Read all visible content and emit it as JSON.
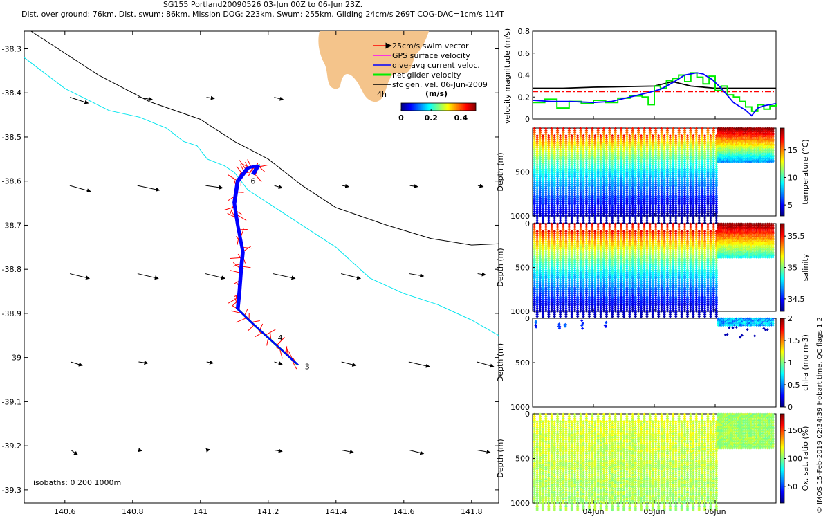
{
  "header": {
    "line1": "SG155 Portland20090526 03-Jun 00Z to 06-Jun 23Z.",
    "line2": "Dist. over ground: 76km. Dist. swum: 86km. Mission DOG: 223km. Swum: 255km. Gliding 24cm/s 269T COG-DAC=1cm/s 114T"
  },
  "footer": {
    "credit": "© IMOS 15-Feb-2019 02:34:39 Hobart time. QC flags 1  2"
  },
  "colors": {
    "coast": "#000000",
    "isobath": "#00e5ee",
    "land": "#f4c48b",
    "swim": "#ff0000",
    "gps": "#ff00ff",
    "dac": "#0000ff",
    "net": "#00ee00",
    "sfc": "#000000"
  },
  "chart_data": [
    {
      "id": "map",
      "type": "scatter",
      "title": "",
      "xlabel": "",
      "ylabel": "",
      "xlim": [
        140.48,
        141.88
      ],
      "ylim": [
        -39.33,
        -38.26
      ],
      "xticks": [
        "140.6",
        "140.8",
        "141",
        "141.2",
        "141.4",
        "141.6",
        "141.8"
      ],
      "xtick_values": [
        140.6,
        140.8,
        141.0,
        141.2,
        141.4,
        141.6,
        141.8
      ],
      "yticks": [
        "-38.3",
        "-38.4",
        "-38.5",
        "-38.6",
        "-38.7",
        "-38.8",
        "-38.9",
        "-39",
        "-39.1",
        "-39.2",
        "-39.3"
      ],
      "ytick_values": [
        -38.3,
        -38.4,
        -38.5,
        -38.6,
        -38.7,
        -38.8,
        -38.9,
        -39.0,
        -39.1,
        -39.2,
        -39.3
      ],
      "legend": [
        {
          "label": "25cm/s swim vector",
          "color": "#ff0000"
        },
        {
          "label": "GPS surface velocity",
          "color": "#ff00ff"
        },
        {
          "label": "dive-avg current veloc.",
          "color": "#0000ff"
        },
        {
          "label": "net glider velocity",
          "color": "#00ee00"
        },
        {
          "label": "sfc gen. vel. 06-Jun-2009",
          "color": "#000000"
        }
      ],
      "colorbar": {
        "label": "(m/s)",
        "ticks": [
          "0",
          "0.2",
          "0.4"
        ],
        "tick_values": [
          0,
          0.2,
          0.4
        ],
        "range": [
          0,
          0.5
        ]
      },
      "inset_label": "4h",
      "isobath_note": "isobaths: 0   200   1000m",
      "coast_line": [
        [
          140.5,
          -38.26
        ],
        [
          140.7,
          -38.36
        ],
        [
          140.85,
          -38.42
        ],
        [
          141.0,
          -38.46
        ],
        [
          141.1,
          -38.51
        ],
        [
          141.2,
          -38.55
        ],
        [
          141.3,
          -38.61
        ],
        [
          141.4,
          -38.66
        ],
        [
          141.55,
          -38.7
        ],
        [
          141.68,
          -38.73
        ],
        [
          141.8,
          -38.745
        ],
        [
          141.88,
          -38.742
        ]
      ],
      "isobath_line": [
        [
          140.48,
          -38.32
        ],
        [
          140.6,
          -38.39
        ],
        [
          140.73,
          -38.44
        ],
        [
          140.82,
          -38.455
        ],
        [
          140.9,
          -38.48
        ],
        [
          140.95,
          -38.51
        ],
        [
          140.99,
          -38.52
        ],
        [
          141.02,
          -38.55
        ],
        [
          141.07,
          -38.565
        ],
        [
          141.1,
          -38.58
        ],
        [
          141.14,
          -38.62
        ],
        [
          141.2,
          -38.65
        ],
        [
          141.3,
          -38.7
        ],
        [
          141.4,
          -38.75
        ],
        [
          141.5,
          -38.82
        ],
        [
          141.6,
          -38.855
        ],
        [
          141.7,
          -38.88
        ],
        [
          141.8,
          -38.915
        ],
        [
          141.88,
          -38.95
        ]
      ],
      "track": [
        [
          141.285,
          -39.015
        ],
        [
          141.25,
          -38.99
        ],
        [
          141.2,
          -38.955
        ],
        [
          141.15,
          -38.92
        ],
        [
          141.11,
          -38.89
        ],
        [
          141.115,
          -38.85
        ],
        [
          141.12,
          -38.8
        ],
        [
          141.125,
          -38.76
        ],
        [
          141.11,
          -38.7
        ],
        [
          141.1,
          -38.65
        ],
        [
          141.11,
          -38.6
        ],
        [
          141.14,
          -38.57
        ],
        [
          141.17,
          -38.565
        ],
        [
          141.155,
          -38.585
        ]
      ],
      "track_labels": [
        {
          "text": "3",
          "lon": 141.3,
          "lat": -39.02
        },
        {
          "text": "4",
          "lon": 141.22,
          "lat": -38.955
        },
        {
          "text": "6",
          "lon": 141.14,
          "lat": -38.6
        }
      ],
      "vector_lons": [
        140.62,
        140.82,
        141.02,
        141.22,
        141.42,
        141.62,
        141.82
      ],
      "vector_lats": [
        -38.41,
        -38.61,
        -38.81,
        -39.01,
        -39.21
      ],
      "vectors": [
        [
          [
            0.14,
            -0.05
          ],
          [
            0.11,
            -0.02
          ],
          [
            0.06,
            -0.01
          ],
          [
            0.07,
            -0.02
          ],
          null,
          null,
          null
        ],
        [
          [
            0.16,
            -0.05
          ],
          [
            0.17,
            -0.04
          ],
          [
            0.13,
            -0.02
          ],
          [
            0.06,
            -0.02
          ],
          [
            0.05,
            -0.01
          ],
          [
            0.06,
            -0.01
          ],
          [
            0.04,
            -0.01
          ]
        ],
        [
          [
            0.15,
            -0.04
          ],
          [
            0.16,
            -0.04
          ],
          [
            0.15,
            -0.04
          ],
          [
            0.17,
            -0.04
          ],
          [
            0.15,
            -0.04
          ],
          [
            0.11,
            -0.02
          ],
          [
            0.06,
            -0.01
          ]
        ],
        [
          [
            0.09,
            -0.03
          ],
          [
            0.07,
            -0.01
          ],
          [
            0.05,
            -0.01
          ],
          [
            0.06,
            -0.02
          ],
          [
            0.11,
            -0.03
          ],
          [
            0.16,
            -0.04
          ],
          [
            0.13,
            -0.04
          ]
        ],
        [
          [
            0.05,
            -0.04
          ],
          [
            0.02,
            -0.005
          ],
          [
            0.02,
            0.005
          ],
          [
            0.06,
            -0.01
          ],
          [
            0.09,
            -0.02
          ],
          [
            0.11,
            -0.03
          ],
          [
            0.1,
            -0.02
          ]
        ]
      ]
    },
    {
      "id": "velocity",
      "type": "line",
      "title": "",
      "xlabel": "",
      "ylabel": "velocity magnitude (m/s)",
      "xlim": [
        3.0,
        7.0
      ],
      "ylim": [
        0,
        0.8
      ],
      "yticks": [
        "0",
        "0.2",
        "0.4",
        "0.6",
        "0.8"
      ],
      "ytick_values": [
        0,
        0.2,
        0.4,
        0.6,
        0.8
      ],
      "series": [
        {
          "name": "sfc gen. vel.",
          "color": "#000000",
          "x": [
            3.0,
            3.5,
            4.0,
            4.5,
            5.0,
            5.3,
            5.6,
            6.0,
            6.5,
            7.0
          ],
          "y": [
            0.28,
            0.28,
            0.29,
            0.295,
            0.3,
            0.34,
            0.3,
            0.28,
            0.28,
            0.28
          ]
        },
        {
          "name": "25cm/s swim",
          "color": "#ff0000",
          "dashed": true,
          "x": [
            3.0,
            7.0
          ],
          "y": [
            0.25,
            0.25
          ]
        },
        {
          "name": "net glider velocity",
          "color": "#00ee00",
          "step": true,
          "x": [
            3.0,
            3.2,
            3.4,
            3.6,
            3.8,
            4.0,
            4.2,
            4.4,
            4.6,
            4.8,
            4.9,
            5.0,
            5.1,
            5.2,
            5.3,
            5.4,
            5.5,
            5.6,
            5.7,
            5.8,
            5.9,
            6.0,
            6.1,
            6.2,
            6.3,
            6.4,
            6.5,
            6.6,
            6.7,
            6.8,
            6.9,
            7.0
          ],
          "y": [
            0.15,
            0.18,
            0.1,
            0.16,
            0.14,
            0.17,
            0.15,
            0.19,
            0.21,
            0.2,
            0.13,
            0.3,
            0.28,
            0.35,
            0.37,
            0.4,
            0.34,
            0.42,
            0.38,
            0.32,
            0.39,
            0.26,
            0.3,
            0.22,
            0.2,
            0.16,
            0.11,
            0.07,
            0.13,
            0.09,
            0.12,
            0.14
          ]
        },
        {
          "name": "dive-avg current veloc.",
          "color": "#0000ff",
          "x": [
            3.0,
            3.3,
            3.6,
            4.0,
            4.3,
            4.6,
            4.9,
            5.1,
            5.3,
            5.5,
            5.7,
            5.8,
            5.95,
            6.1,
            6.3,
            6.5,
            6.6,
            6.7,
            6.8,
            7.0
          ],
          "y": [
            0.17,
            0.16,
            0.16,
            0.15,
            0.16,
            0.2,
            0.24,
            0.27,
            0.33,
            0.4,
            0.42,
            0.41,
            0.36,
            0.28,
            0.15,
            0.08,
            0.03,
            0.1,
            0.12,
            0.14
          ]
        }
      ]
    },
    {
      "id": "temperature",
      "type": "scatter",
      "ylabel": "Depth (m)",
      "xlim": [
        3.0,
        7.0
      ],
      "ylim": [
        1000,
        0
      ],
      "yticks": [
        "500",
        "1000"
      ],
      "ytick_values": [
        500,
        1000
      ],
      "colorbar": {
        "label": "temperature (°C)",
        "ticks": [
          "5",
          "10",
          "15"
        ],
        "tick_values": [
          5,
          10,
          15
        ],
        "range": [
          3,
          19
        ]
      },
      "surface_value": 18,
      "deep_value": 4,
      "late_surface_value": 19
    },
    {
      "id": "salinity",
      "type": "scatter",
      "ylabel": "Depth (m)",
      "xlim": [
        3.0,
        7.0
      ],
      "ylim": [
        1000,
        0
      ],
      "yticks": [
        "0",
        "500",
        "1000"
      ],
      "ytick_values": [
        0,
        500,
        1000
      ],
      "colorbar": {
        "label": "salinity",
        "ticks": [
          "34.5",
          "35",
          "35.5"
        ],
        "tick_values": [
          34.5,
          35.0,
          35.5
        ],
        "range": [
          34.3,
          35.7
        ]
      },
      "surface_value": 35.6,
      "deep_value": 34.35,
      "late_surface_value": 35.7
    },
    {
      "id": "chla",
      "type": "scatter",
      "ylabel": "Depth (m)",
      "xlim": [
        3.0,
        7.0
      ],
      "ylim": [
        1000,
        0
      ],
      "yticks": [
        "0",
        "500",
        "1000"
      ],
      "ytick_values": [
        0,
        500,
        1000
      ],
      "colorbar": {
        "label": "chl-a (mg m-3)",
        "ticks": [
          "0",
          "0.5",
          "1",
          "1.5",
          "2"
        ],
        "tick_values": [
          0,
          0.5,
          1.0,
          1.5,
          2.0
        ],
        "range": [
          0,
          2
        ]
      }
    },
    {
      "id": "oxygen",
      "type": "scatter",
      "ylabel": "Depth (m)",
      "xlim": [
        3.0,
        7.0
      ],
      "ylim": [
        1000,
        0
      ],
      "yticks": [
        "0",
        "500",
        "1000"
      ],
      "ytick_values": [
        0,
        500,
        1000
      ],
      "xticks": [
        "04Jun",
        "05Jun",
        "06Jun"
      ],
      "xtick_values": [
        4.0,
        5.0,
        6.0
      ],
      "colorbar": {
        "label": "Ox. sat. ratio (%)",
        "ticks": [
          "50",
          "100",
          "150"
        ],
        "tick_values": [
          50,
          100,
          150
        ],
        "range": [
          20,
          180
        ]
      }
    }
  ]
}
